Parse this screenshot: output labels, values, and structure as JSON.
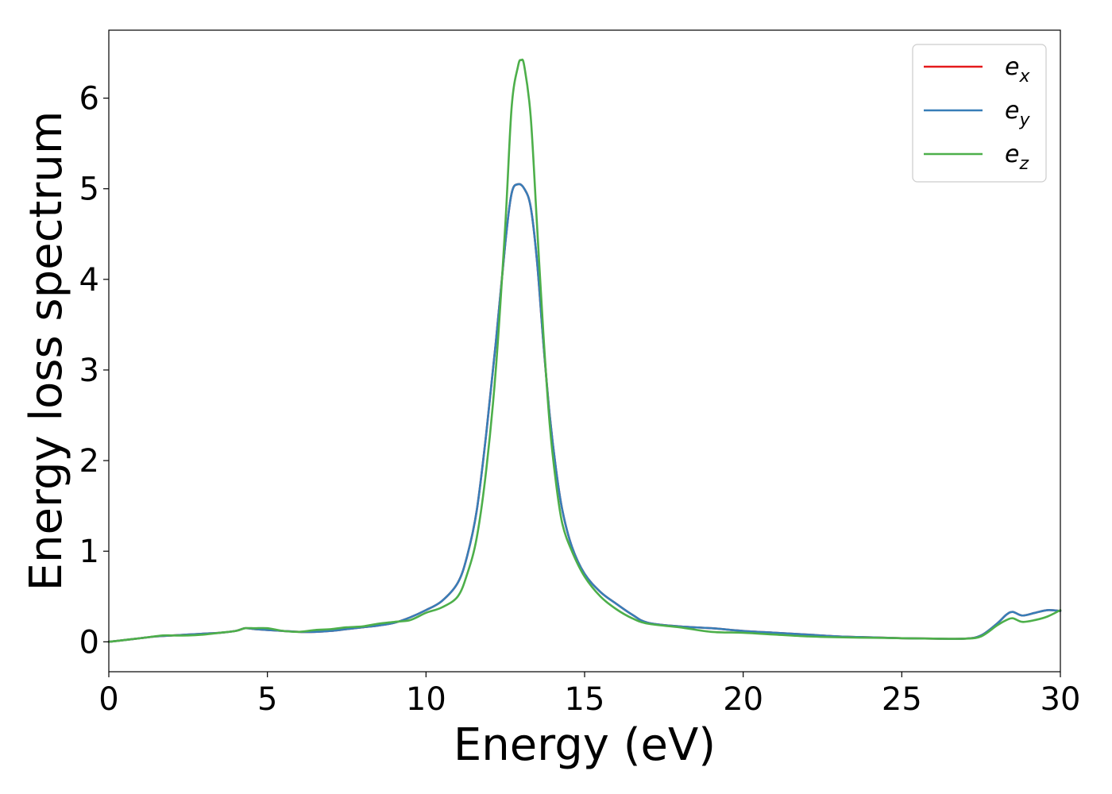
{
  "chart_data": {
    "type": "line",
    "title": "",
    "xlabel": "Energy (eV)",
    "ylabel": "Energy loss spectrum",
    "xlim": [
      0,
      30
    ],
    "ylim": [
      -0.33,
      6.75
    ],
    "xticks": [
      "0",
      "5",
      "10",
      "15",
      "20",
      "25",
      "30"
    ],
    "yticks": [
      "0",
      "1",
      "2",
      "3",
      "4",
      "5",
      "6"
    ],
    "grid": false,
    "legend_position": "top-right",
    "series": [
      {
        "name": "e_x",
        "legend_base": "e",
        "legend_sub": "x",
        "color": "#e41a1c",
        "x": [
          0,
          0.5,
          1,
          1.5,
          2,
          2.5,
          3,
          3.5,
          4,
          4.3,
          4.6,
          5,
          5.5,
          6,
          6.5,
          7,
          7.5,
          8,
          8.5,
          9,
          9.5,
          10,
          10.5,
          11,
          11.3,
          11.6,
          11.9,
          12.2,
          12.5,
          12.7,
          12.9,
          13.1,
          13.3,
          13.5,
          13.7,
          13.9,
          14.1,
          14.3,
          14.6,
          15,
          15.5,
          16,
          16.5,
          17,
          18,
          19,
          20,
          21,
          22,
          23,
          24,
          25,
          26,
          27,
          27.5,
          28,
          28.3,
          28.5,
          28.8,
          29.2,
          29.6,
          30
        ],
        "y": [
          0,
          0.02,
          0.04,
          0.06,
          0.07,
          0.08,
          0.09,
          0.1,
          0.12,
          0.15,
          0.14,
          0.13,
          0.12,
          0.11,
          0.11,
          0.12,
          0.14,
          0.16,
          0.18,
          0.21,
          0.27,
          0.35,
          0.45,
          0.65,
          0.95,
          1.45,
          2.3,
          3.3,
          4.4,
          4.95,
          5.05,
          5.0,
          4.8,
          4.2,
          3.3,
          2.5,
          1.9,
          1.45,
          1.05,
          0.75,
          0.55,
          0.42,
          0.3,
          0.21,
          0.17,
          0.15,
          0.12,
          0.1,
          0.08,
          0.06,
          0.05,
          0.04,
          0.035,
          0.035,
          0.07,
          0.2,
          0.3,
          0.33,
          0.29,
          0.32,
          0.35,
          0.34
        ]
      },
      {
        "name": "e_y",
        "legend_base": "e",
        "legend_sub": "y",
        "color": "#377eb8",
        "x": [
          0,
          0.5,
          1,
          1.5,
          2,
          2.5,
          3,
          3.5,
          4,
          4.3,
          4.6,
          5,
          5.5,
          6,
          6.5,
          7,
          7.5,
          8,
          8.5,
          9,
          9.5,
          10,
          10.5,
          11,
          11.3,
          11.6,
          11.9,
          12.2,
          12.5,
          12.7,
          12.9,
          13.1,
          13.3,
          13.5,
          13.7,
          13.9,
          14.1,
          14.3,
          14.6,
          15,
          15.5,
          16,
          16.5,
          17,
          18,
          19,
          20,
          21,
          22,
          23,
          24,
          25,
          26,
          27,
          27.5,
          28,
          28.3,
          28.5,
          28.8,
          29.2,
          29.6,
          30
        ],
        "y": [
          0,
          0.02,
          0.04,
          0.06,
          0.07,
          0.08,
          0.09,
          0.1,
          0.12,
          0.15,
          0.14,
          0.13,
          0.12,
          0.11,
          0.11,
          0.12,
          0.14,
          0.16,
          0.18,
          0.21,
          0.27,
          0.35,
          0.45,
          0.65,
          0.95,
          1.45,
          2.3,
          3.3,
          4.4,
          4.95,
          5.05,
          5.0,
          4.8,
          4.2,
          3.3,
          2.5,
          1.9,
          1.45,
          1.05,
          0.75,
          0.55,
          0.42,
          0.3,
          0.21,
          0.17,
          0.15,
          0.12,
          0.1,
          0.08,
          0.06,
          0.05,
          0.04,
          0.035,
          0.035,
          0.07,
          0.2,
          0.3,
          0.33,
          0.29,
          0.32,
          0.35,
          0.34
        ]
      },
      {
        "name": "e_z",
        "legend_base": "e",
        "legend_sub": "z",
        "color": "#4daf4a",
        "x": [
          0,
          0.5,
          1,
          1.7,
          2,
          2.5,
          3,
          3.5,
          4,
          4.3,
          4.6,
          5,
          5.5,
          6,
          6.5,
          7,
          7.5,
          8,
          8.5,
          9,
          9.5,
          10,
          10.5,
          11,
          11.3,
          11.6,
          11.9,
          12.2,
          12.5,
          12.7,
          12.9,
          13.0,
          13.1,
          13.3,
          13.5,
          13.7,
          13.9,
          14.1,
          14.3,
          14.6,
          15,
          15.5,
          16,
          16.5,
          17,
          18,
          19,
          20,
          21,
          22,
          23,
          24,
          25,
          26,
          27,
          27.5,
          28,
          28.3,
          28.5,
          28.8,
          29.2,
          29.6,
          30
        ],
        "y": [
          0,
          0.02,
          0.04,
          0.07,
          0.07,
          0.07,
          0.08,
          0.1,
          0.12,
          0.15,
          0.15,
          0.15,
          0.12,
          0.11,
          0.13,
          0.14,
          0.16,
          0.17,
          0.2,
          0.22,
          0.24,
          0.32,
          0.38,
          0.5,
          0.75,
          1.15,
          1.9,
          3.0,
          4.6,
          5.9,
          6.35,
          6.42,
          6.35,
          5.8,
          4.6,
          3.4,
          2.4,
          1.75,
          1.3,
          1.0,
          0.72,
          0.5,
          0.36,
          0.26,
          0.2,
          0.16,
          0.11,
          0.1,
          0.08,
          0.06,
          0.05,
          0.045,
          0.04,
          0.035,
          0.035,
          0.06,
          0.18,
          0.24,
          0.26,
          0.22,
          0.24,
          0.28,
          0.35
        ]
      }
    ]
  }
}
